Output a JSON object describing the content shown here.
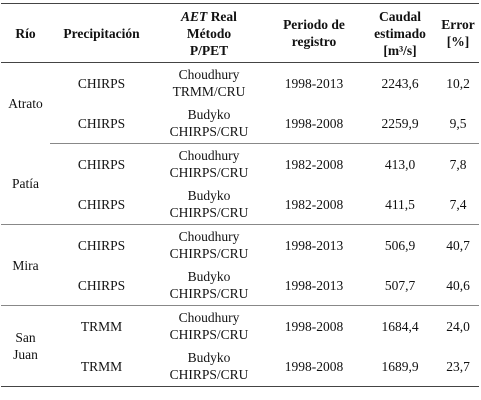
{
  "table": {
    "headers": {
      "rio": "Río",
      "precipitacion": "Precipitación",
      "aet_em": "AET",
      "aet_line1_rest": " Real",
      "aet_line2": "Método",
      "aet_line3": "P/PET",
      "periodo_line1": "Periodo de",
      "periodo_line2": "registro",
      "caudal_line1": "Caudal",
      "caudal_line2": "estimado",
      "caudal_line3": "[m³/s]",
      "error_line1": "Error",
      "error_line2": "[%]"
    },
    "groups": [
      {
        "river": "Atrato",
        "rows": [
          {
            "precip": "CHIRPS",
            "method1": "Choudhury",
            "method2": "TRMM/CRU",
            "period": "1998-2013",
            "caudal": "2243,6",
            "error": "10,2"
          },
          {
            "precip": "CHIRPS",
            "method1": "Budyko",
            "method2": "CHIRPS/CRU",
            "period": "1998-2008",
            "caudal": "2259,9",
            "error": "9,5"
          }
        ]
      },
      {
        "river": "Patía",
        "rows": [
          {
            "precip": "CHIRPS",
            "method1": "Choudhury",
            "method2": "CHIRPS/CRU",
            "period": "1982-2008",
            "caudal": "413,0",
            "error": "7,8"
          },
          {
            "precip": "CHIRPS",
            "method1": "Budyko",
            "method2": "CHIRPS/CRU",
            "period": "1982-2008",
            "caudal": "411,5",
            "error": "7,4"
          }
        ]
      },
      {
        "river": "Mira",
        "rows": [
          {
            "precip": "CHIRPS",
            "method1": "Choudhury",
            "method2": "CHIRPS/CRU",
            "period": "1998-2013",
            "caudal": "506,9",
            "error": "40,7"
          },
          {
            "precip": "CHIRPS",
            "method1": "Budyko",
            "method2": "CHIRPS/CRU",
            "period": "1998-2013",
            "caudal": "507,7",
            "error": "40,6"
          }
        ]
      },
      {
        "river_line1": "San",
        "river_line2": "Juan",
        "rows": [
          {
            "precip": "TRMM",
            "method1": "Choudhury",
            "method2": "CHIRPS/CRU",
            "period": "1998-2008",
            "caudal": "1684,4",
            "error": "24,0"
          },
          {
            "precip": "TRMM",
            "method1": "Budyko",
            "method2": "CHIRPS/CRU",
            "period": "1998-2008",
            "caudal": "1689,9",
            "error": "23,7"
          }
        ]
      }
    ]
  }
}
